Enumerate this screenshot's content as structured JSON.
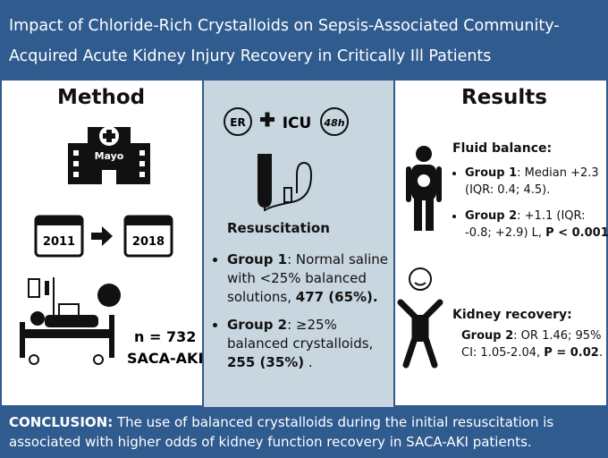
{
  "header": {
    "title_lines": [
      "Impact of Chloride-Rich Crystalloids on Sepsis-Associated Community-",
      "Acquired Acute Kidney Injury Recovery in Critically Ill Patients"
    ]
  },
  "method": {
    "heading": "Method",
    "hospital": "Mayo",
    "start_year": "2011",
    "end_year": "2018",
    "n": "n = 732",
    "cohort": "SACA-AKI"
  },
  "intervention": {
    "icons": [
      "ER",
      "ICU",
      "48h"
    ],
    "heading": "Resuscitation",
    "bullets": [
      {
        "parts": [
          "Group 1",
          ": Normal saline with <25% balanced solutions, ",
          "477 (65%)."
        ]
      },
      {
        "parts": [
          "Group 2",
          ": ≥25% balanced crystalloids, ",
          "255 (35%)",
          " ."
        ]
      }
    ]
  },
  "results": {
    "heading": "Results",
    "fluid_balance": {
      "heading": "Fluid balance:",
      "bullets": [
        {
          "parts": [
            "Group 1",
            ": Median +2.3 (IQR: 0.4; 4.5)."
          ]
        },
        {
          "parts": [
            "Group 2",
            ": +1.1 (IQR: -0.8; +2.9) L, ",
            "P < 0.001",
            "."
          ]
        }
      ]
    },
    "kidney_recovery": {
      "heading": "Kidney recovery:",
      "parts": [
        "Group 2",
        ": OR 1.46; 95% CI: 1.05-2.04, ",
        "P = 0.02",
        "."
      ]
    }
  },
  "conclusion": {
    "label": "CONCLUSION:",
    "text": " The use of balanced crystalloids during the initial resuscitation is associated with higher odds of kidney function recovery in SACA-AKI patients."
  }
}
